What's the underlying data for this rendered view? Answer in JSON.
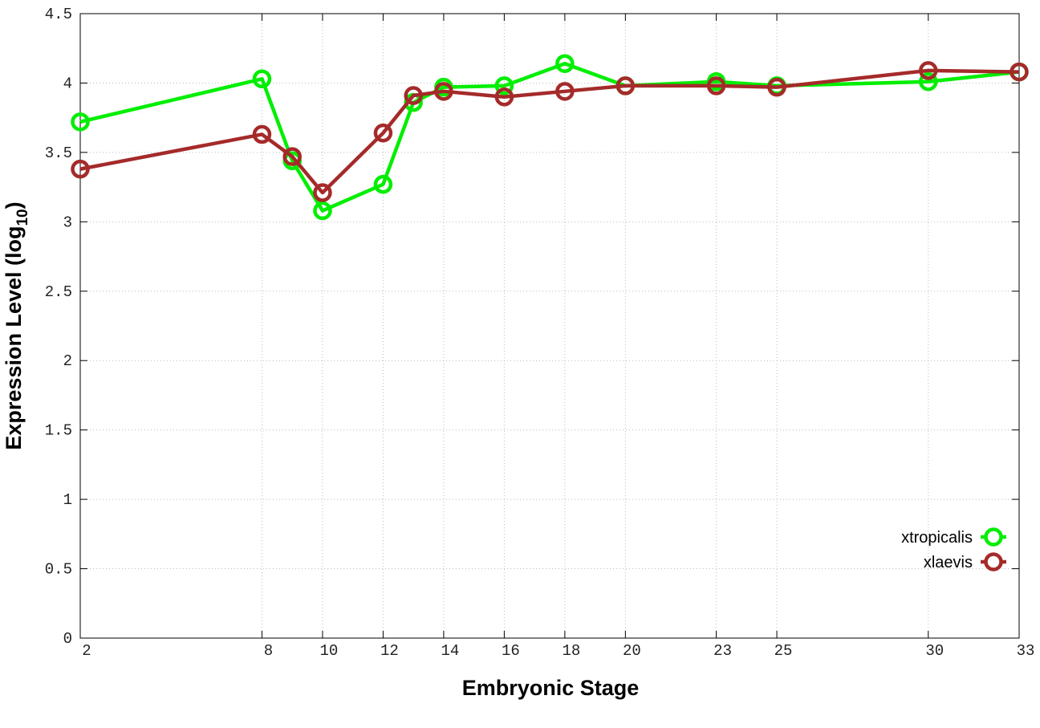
{
  "chart_data": {
    "type": "line",
    "x_label": "Embryonic Stage",
    "y_label": [
      "Expression Level (log",
      "10",
      ")"
    ],
    "x": [
      2,
      8,
      9,
      10,
      12,
      13,
      14,
      16,
      18,
      20,
      23,
      25,
      30,
      33
    ],
    "series": [
      {
        "name": "xtropicalis",
        "color": "#00ee00",
        "values": [
          3.72,
          4.03,
          3.44,
          3.08,
          3.27,
          3.86,
          3.97,
          3.98,
          4.14,
          3.98,
          4.01,
          3.98,
          4.01,
          4.08
        ]
      },
      {
        "name": "xlaevis",
        "color": "#a52a2a",
        "values": [
          3.38,
          3.63,
          3.47,
          3.21,
          3.64,
          3.91,
          3.94,
          3.9,
          3.94,
          3.98,
          3.98,
          3.97,
          4.09,
          4.08
        ]
      }
    ],
    "xlim": [
      2,
      33
    ],
    "xticks": [
      2,
      8,
      10,
      12,
      14,
      16,
      18,
      20,
      23,
      25,
      30,
      33
    ],
    "ylim": [
      0,
      4.5
    ],
    "yticks": [
      0,
      0.5,
      1,
      1.5,
      2,
      2.5,
      3,
      3.5,
      4,
      4.5
    ],
    "grid": true,
    "legend": "lower right"
  }
}
